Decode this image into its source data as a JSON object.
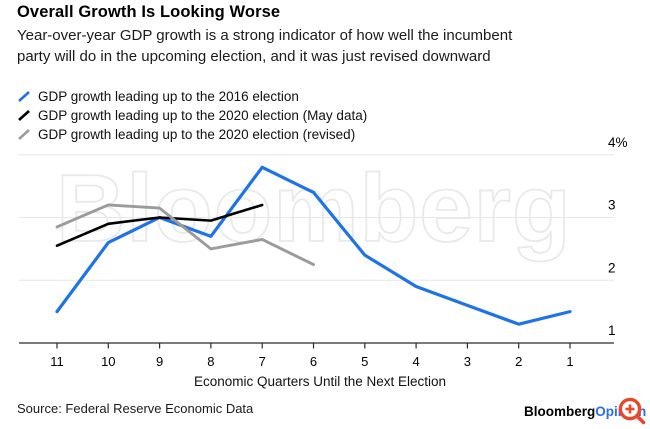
{
  "header": {
    "title": "Overall Growth Is Looking Worse",
    "subtitle_line1": "Year-over-year GDP growth is a strong indicator of how well the incumbent",
    "subtitle_line2": "party will do in the upcoming election, and it was just revised downward"
  },
  "legend": [
    {
      "label": "GDP growth leading up to the 2016 election",
      "color": "#1f73e8"
    },
    {
      "label": "GDP growth leading up to the 2020 election (May data)",
      "color": "#000000"
    },
    {
      "label": "GDP growth leading up to the 2020 election (revised)",
      "color": "#9b9b9b"
    }
  ],
  "chart_data": {
    "type": "line",
    "x": [
      11,
      10,
      9,
      8,
      7,
      6,
      5,
      4,
      3,
      2,
      1
    ],
    "xlabel": "Economic Quarters Until the Next Election",
    "x_note": "x axis runs from 11 (left) down to 1 (right)",
    "ylim": [
      1,
      4
    ],
    "yticks": [
      1,
      2,
      3,
      4
    ],
    "ytick_labels": [
      "1",
      "2",
      "3",
      "4%"
    ],
    "grid": "horizontal",
    "legend_position": "top-left",
    "watermark": "Bloomberg",
    "series": [
      {
        "name": "GDP growth leading up to the 2016 election",
        "color": "#1f73e8",
        "values": [
          1.5,
          2.6,
          3.0,
          2.7,
          3.8,
          3.4,
          2.4,
          1.9,
          1.6,
          1.3,
          1.5
        ]
      },
      {
        "name": "GDP growth leading up to the 2020 election (May data)",
        "color": "#000000",
        "values": [
          2.55,
          2.9,
          3.0,
          2.95,
          3.2,
          null,
          null,
          null,
          null,
          null,
          null
        ]
      },
      {
        "name": "GDP growth leading up to the 2020 election (revised)",
        "color": "#9b9b9b",
        "values": [
          2.85,
          3.2,
          3.15,
          2.5,
          2.65,
          2.25,
          null,
          null,
          null,
          null,
          null
        ]
      }
    ]
  },
  "footer": {
    "source": "Source: Federal Reserve Economic Data",
    "brand": "Bloomberg",
    "brand_suffix": "Opinion"
  },
  "icons": {
    "magnifier": {
      "name": "zoom-magnifier-icon",
      "color": "#e8472b"
    }
  }
}
